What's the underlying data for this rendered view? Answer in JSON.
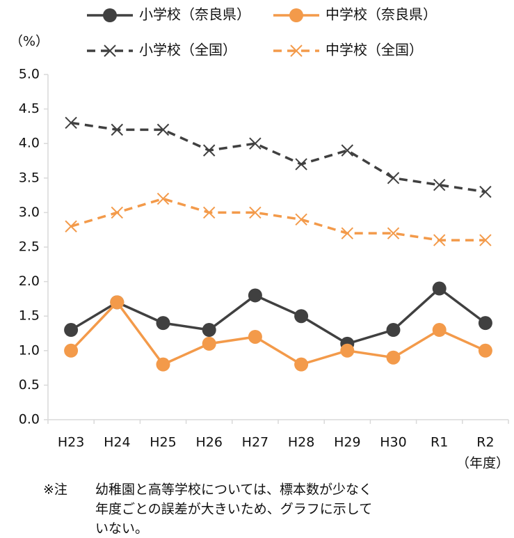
{
  "chart_data": {
    "type": "line",
    "y_unit": "（%）",
    "x_unit": "（年度）",
    "categories": [
      "H23",
      "H24",
      "H25",
      "H26",
      "H27",
      "H28",
      "H29",
      "H30",
      "R1",
      "R2"
    ],
    "series": [
      {
        "name": "小学校（奈良県）",
        "color": "#404040",
        "style": "solid",
        "marker": "circle",
        "values": [
          1.3,
          1.7,
          1.4,
          1.3,
          1.8,
          1.5,
          1.1,
          1.3,
          1.9,
          1.4
        ]
      },
      {
        "name": "中学校（奈良県）",
        "color": "#f39a4a",
        "style": "solid",
        "marker": "circle",
        "values": [
          1.0,
          1.7,
          0.8,
          1.1,
          1.2,
          0.8,
          1.0,
          0.9,
          1.3,
          1.0
        ]
      },
      {
        "name": "小学校（全国）",
        "color": "#404040",
        "style": "dashed",
        "marker": "x",
        "values": [
          4.3,
          4.2,
          4.2,
          3.9,
          4.0,
          3.7,
          3.9,
          3.5,
          3.4,
          3.3
        ]
      },
      {
        "name": "中学校（全国）",
        "color": "#f39a4a",
        "style": "dashed",
        "marker": "x",
        "values": [
          2.8,
          3.0,
          3.2,
          3.0,
          3.0,
          2.9,
          2.7,
          2.7,
          2.6,
          2.6
        ]
      }
    ],
    "ylim": [
      0,
      5
    ],
    "yticks": [
      {
        "value": 0,
        "label": "0.0"
      },
      0.5,
      {
        "value": 1,
        "label": "1.0"
      },
      1.5,
      {
        "value": 2,
        "label": "2.0"
      },
      2.5,
      {
        "value": 3,
        "label": "3.0"
      },
      3.5,
      {
        "value": 4,
        "label": "4.0"
      },
      4.5,
      {
        "value": 5,
        "label": "5.0"
      }
    ],
    "note_label": "※注",
    "note_lines": [
      "幼稚園と高等学校については、標本数が少なく",
      "年度ごとの誤差が大きいため、グラフに示して",
      "いない。"
    ]
  }
}
